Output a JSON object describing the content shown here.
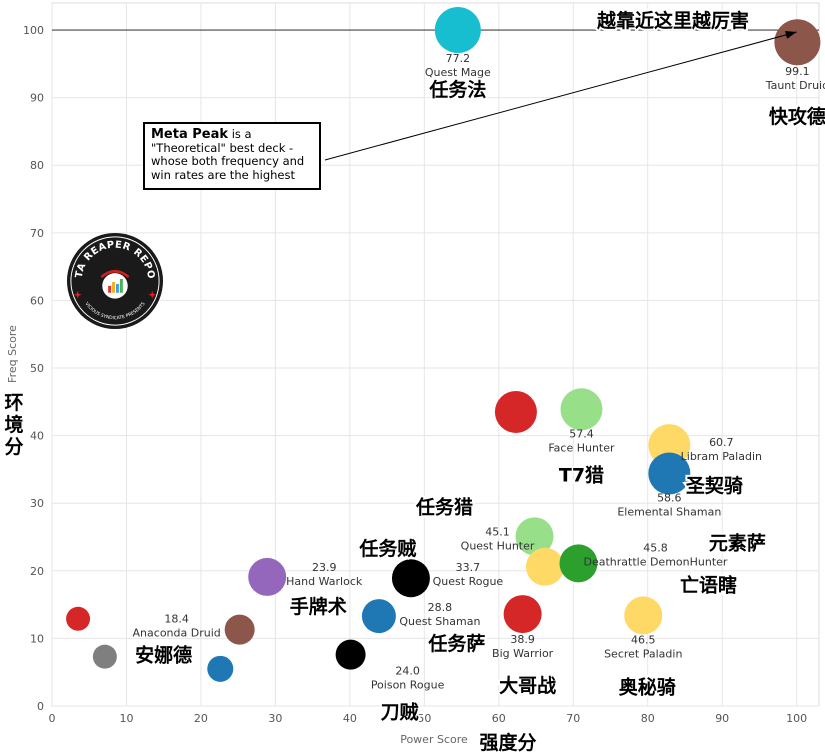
{
  "chart_data": {
    "type": "scatter",
    "xlabel": "Power Score",
    "xlabel_cn": "强度分",
    "ylabel": "Freq Score",
    "ylabel_cn": "环境分",
    "xlim": [
      0,
      103
    ],
    "ylim": [
      0,
      104
    ],
    "x_ticks": [
      0,
      10,
      20,
      30,
      40,
      50,
      60,
      70,
      80,
      90,
      100
    ],
    "y_ticks": [
      0,
      10,
      20,
      30,
      40,
      50,
      60,
      70,
      80,
      90,
      100
    ],
    "grid": true,
    "meta_peak_line_y": 100,
    "corner_caption": "越靠近这里越厉害",
    "note": {
      "title": "Meta Peak",
      "body": "is a \"Theoretical\" best deck - whose both frequency and win rates are the highest"
    },
    "logo": {
      "text_top": "DATA REAPER REPORT",
      "text_bottom": "VICIOUS SYNDICATE PRESENTS"
    },
    "points": [
      {
        "x": 54.5,
        "y": 100,
        "color": "#17becf",
        "value": "77.2",
        "name": "Quest Mage",
        "cn": "任务法"
      },
      {
        "x": 100.1,
        "y": 98.2,
        "color": "#8c564b",
        "value": "99.1",
        "name": "Taunt Druid",
        "cn": "快攻德"
      },
      {
        "x": 62.3,
        "y": 43.5,
        "color": "#d62728",
        "value": "",
        "name": "",
        "cn": ""
      },
      {
        "x": 71.1,
        "y": 43.9,
        "color": "#98df8a",
        "value": "57.4",
        "name": "Face Hunter",
        "cn": "T7猎"
      },
      {
        "x": 82.9,
        "y": 38.6,
        "color": "#ffd966",
        "value": "60.7",
        "name": "Libram Paladin",
        "cn": "圣契骑"
      },
      {
        "x": 82.9,
        "y": 34.4,
        "color": "#1f77b4",
        "value": "58.6",
        "name": "Elemental Shaman",
        "cn": "元素萨"
      },
      {
        "x": 64.8,
        "y": 25.1,
        "color": "#98df8a",
        "value": "45.1",
        "name": "Quest Hunter",
        "cn": "任务猎"
      },
      {
        "x": 66.2,
        "y": 20.6,
        "color": "#ffd966",
        "value": "",
        "name": "",
        "cn": ""
      },
      {
        "x": 70.7,
        "y": 21.1,
        "color": "#2ca02c",
        "value": "45.8",
        "name": "Deathrattle DemonHunter",
        "cn": "亡语瞎"
      },
      {
        "x": 48.2,
        "y": 18.9,
        "color": "#000000",
        "value": "33.7",
        "name": "Quest Rogue",
        "cn": "任务贼"
      },
      {
        "x": 28.9,
        "y": 19.1,
        "color": "#9467bd",
        "value": "23.9",
        "name": "Hand Warlock",
        "cn": "手牌术"
      },
      {
        "x": 43.9,
        "y": 13.3,
        "color": "#1f77b4",
        "value": "28.8",
        "name": "Quest Shaman",
        "cn": "任务萨"
      },
      {
        "x": 63.2,
        "y": 13.6,
        "color": "#d62728",
        "value": "38.9",
        "name": "Big Warrior",
        "cn": "大哥战"
      },
      {
        "x": 79.4,
        "y": 13.4,
        "color": "#ffd966",
        "value": "46.5",
        "name": "Secret Paladin",
        "cn": "奥秘骑"
      },
      {
        "x": 3.5,
        "y": 12.9,
        "color": "#d62728",
        "value": "",
        "name": "",
        "cn": ""
      },
      {
        "x": 7.1,
        "y": 7.3,
        "color": "#7f7f7f",
        "value": "",
        "name": "",
        "cn": ""
      },
      {
        "x": 25.2,
        "y": 11.3,
        "color": "#8c564b",
        "value": "18.4",
        "name": "Anaconda Druid",
        "cn": "安娜德"
      },
      {
        "x": 22.6,
        "y": 5.5,
        "color": "#1f77b4",
        "value": "",
        "name": "",
        "cn": ""
      },
      {
        "x": 40.1,
        "y": 7.6,
        "color": "#000000",
        "value": "24.0",
        "name": "Poison Rogue",
        "cn": "刀贼"
      }
    ]
  }
}
